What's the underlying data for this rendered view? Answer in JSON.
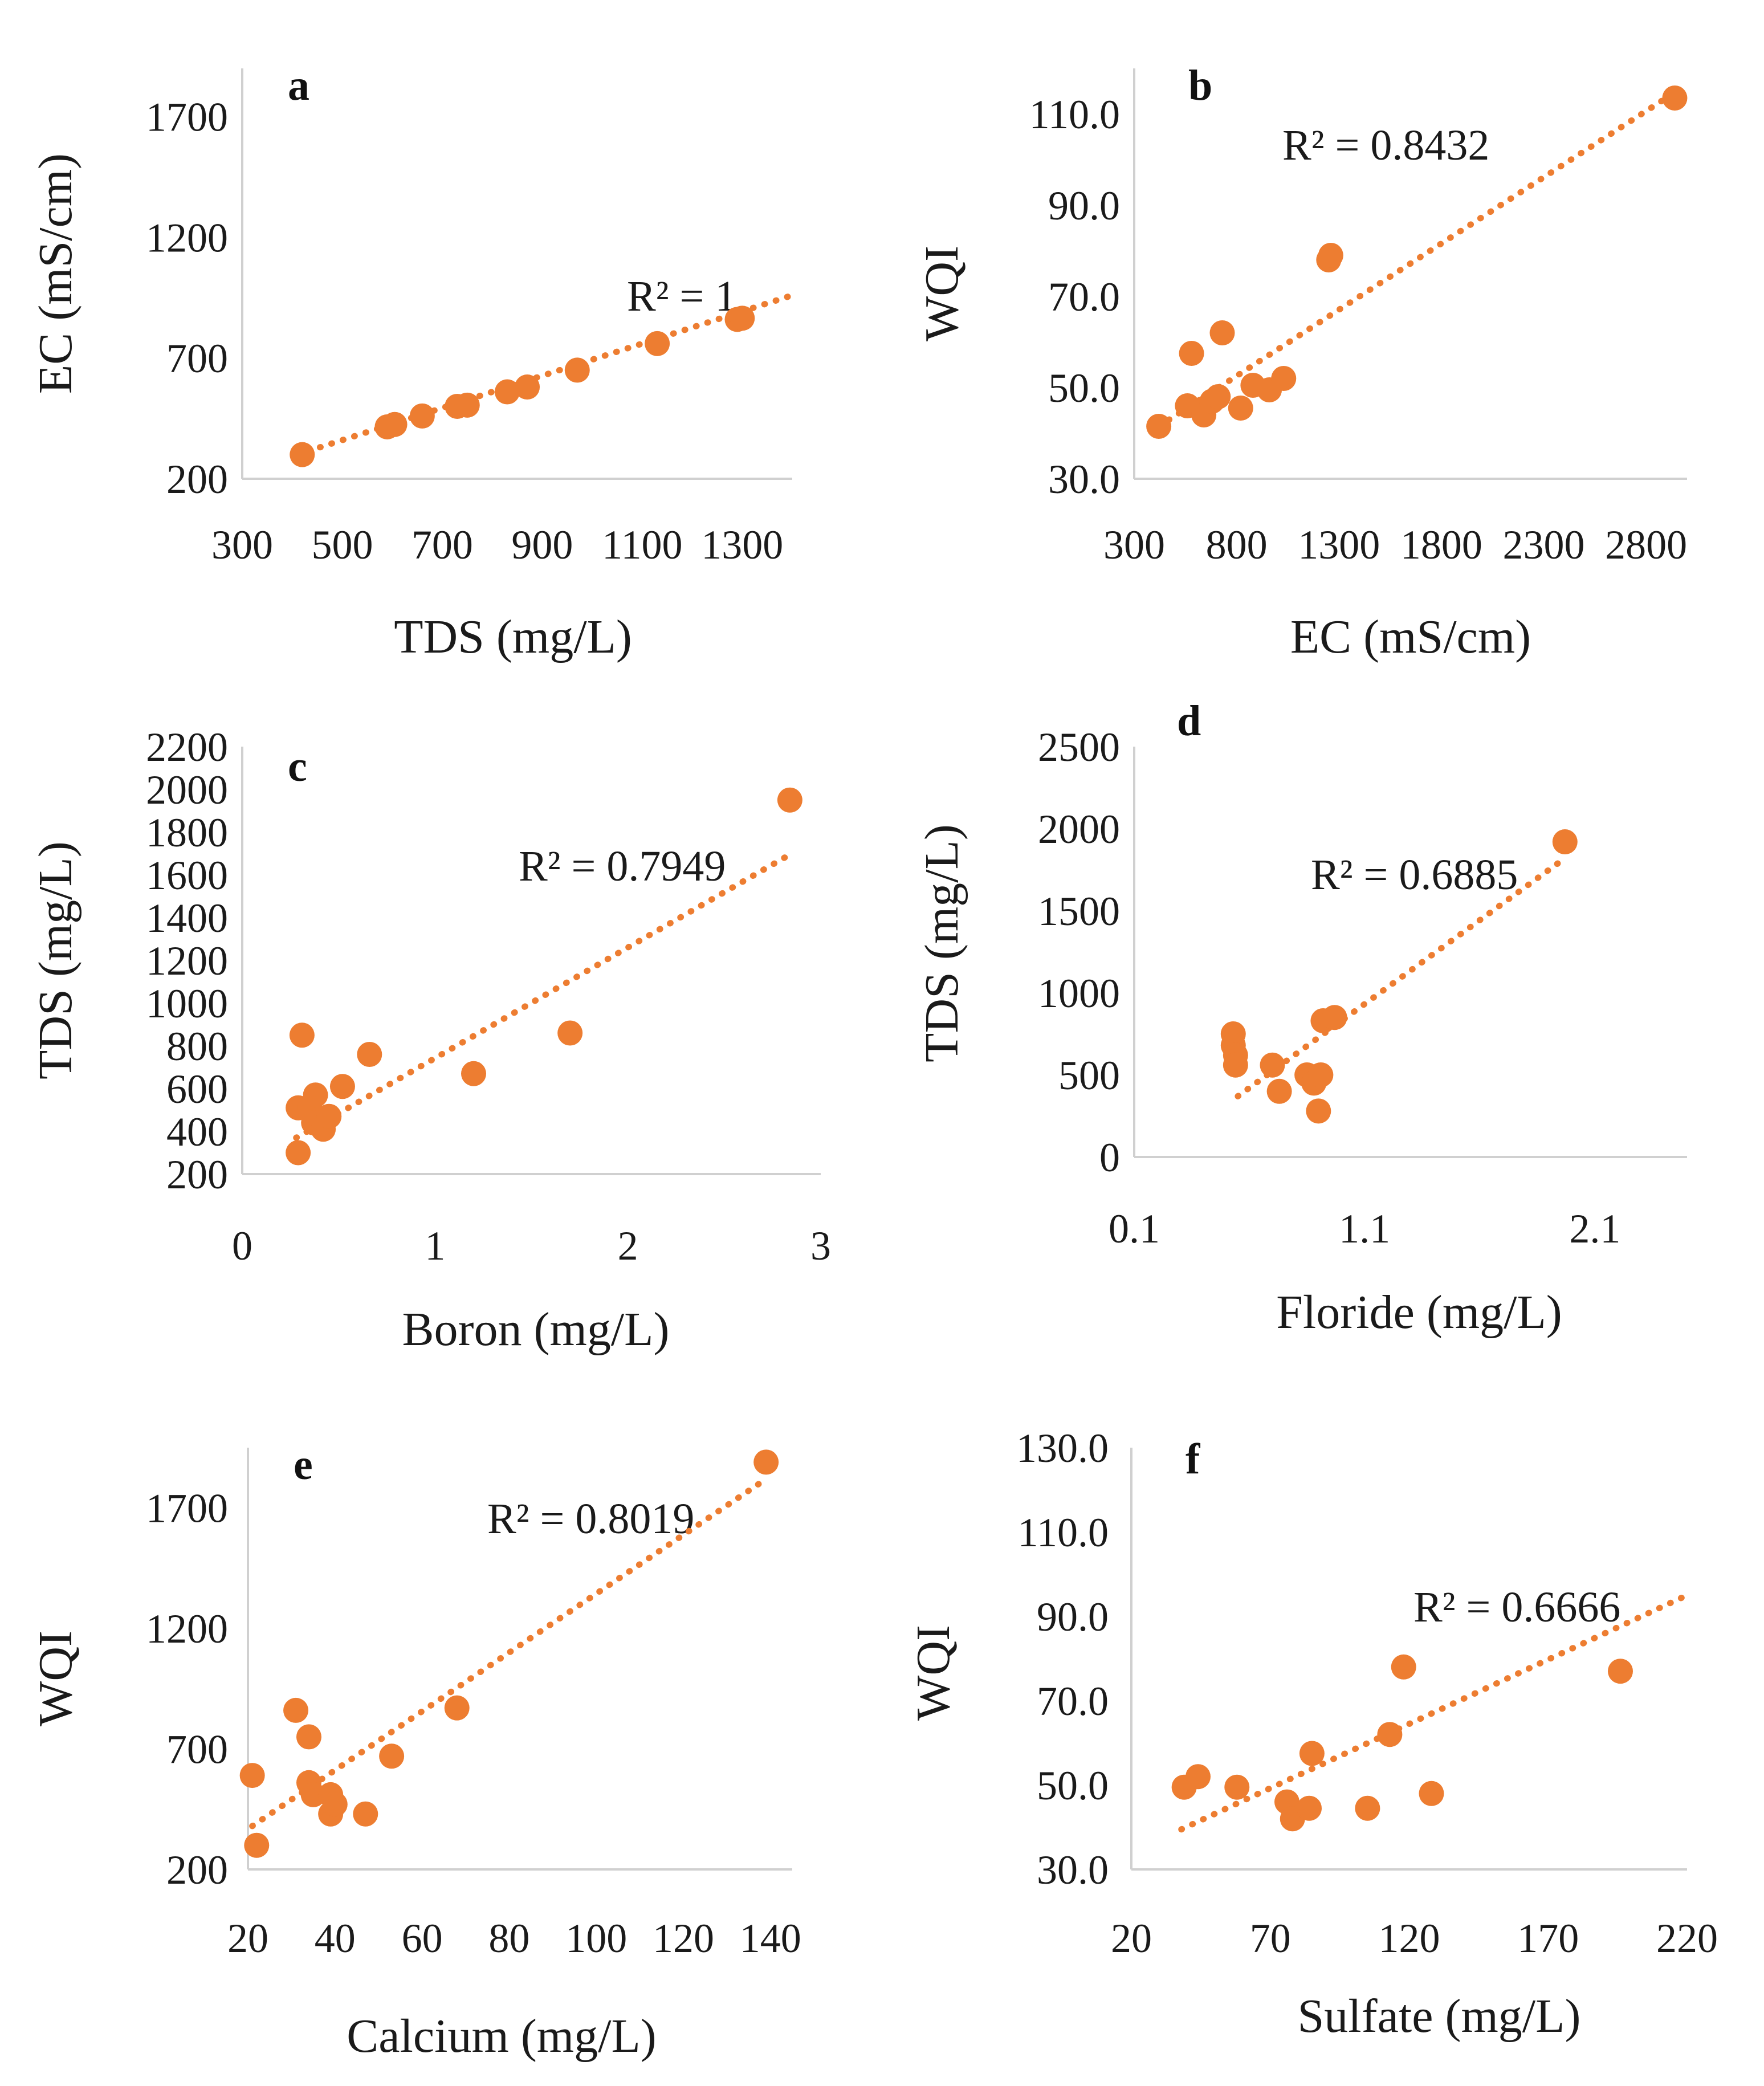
{
  "style": {
    "marker_color": "#ed7d31",
    "axis_color": "#d0d0d0",
    "text_color": "#1a1a1a"
  },
  "chart_data": [
    {
      "type": "scatter",
      "panel": "a",
      "xlabel": "TDS (mg/L)",
      "ylabel": "EC (mS/cm)",
      "xlim": [
        300,
        1400
      ],
      "ylim": [
        200,
        1900
      ],
      "xticks": [
        300,
        500,
        700,
        900,
        1100,
        1300
      ],
      "yticks": [
        200,
        700,
        1200,
        1700
      ],
      "r2_text": "R² = 1",
      "trendline": {
        "x": [
          410,
          1400
        ],
        "y": [
          300,
          960
        ]
      },
      "points": [
        [
          420,
          300
        ],
        [
          590,
          415
        ],
        [
          605,
          425
        ],
        [
          660,
          460
        ],
        [
          730,
          500
        ],
        [
          750,
          505
        ],
        [
          830,
          560
        ],
        [
          870,
          580
        ],
        [
          970,
          650
        ],
        [
          1130,
          760
        ],
        [
          1290,
          860
        ],
        [
          1300,
          865
        ]
      ]
    },
    {
      "type": "scatter",
      "panel": "b",
      "xlabel": "EC (mS/cm)",
      "ylabel": "WQI",
      "xlim": [
        300,
        3000
      ],
      "ylim": [
        30.0,
        120.0
      ],
      "xticks": [
        300,
        800,
        1300,
        1800,
        2300,
        2800
      ],
      "yticks": [
        "30.0",
        "50.0",
        "70.0",
        "90.0",
        "110.0"
      ],
      "r2_text": "R² = 0.8432",
      "trendline": {
        "x": [
          420,
          2950
        ],
        "y": [
          41.5,
          115.0
        ]
      },
      "points": [
        [
          420,
          41.5
        ],
        [
          560,
          46
        ],
        [
          580,
          57.5
        ],
        [
          640,
          44
        ],
        [
          680,
          47
        ],
        [
          710,
          48
        ],
        [
          730,
          62
        ],
        [
          820,
          45.5
        ],
        [
          880,
          50.5
        ],
        [
          960,
          49.5
        ],
        [
          1030,
          52
        ],
        [
          1250,
          78
        ],
        [
          1260,
          79
        ],
        [
          2940,
          113.5
        ]
      ]
    },
    {
      "type": "scatter",
      "panel": "c",
      "xlabel": "Boron (mg/L)",
      "ylabel": "TDS (mg/L)",
      "xlim": [
        0,
        3
      ],
      "ylim": [
        200,
        2200
      ],
      "xticks": [
        0,
        1,
        2,
        3
      ],
      "yticks": [
        200,
        400,
        600,
        800,
        1000,
        1200,
        1400,
        1600,
        1800,
        2000,
        2200
      ],
      "r2_text": "R² = 0.7949",
      "trendline": {
        "x": [
          0.28,
          2.85
        ],
        "y": [
          370,
          1700
        ]
      },
      "points": [
        [
          0.29,
          300
        ],
        [
          0.29,
          510
        ],
        [
          0.31,
          850
        ],
        [
          0.35,
          510
        ],
        [
          0.37,
          440
        ],
        [
          0.38,
          570
        ],
        [
          0.42,
          410
        ],
        [
          0.45,
          470
        ],
        [
          0.52,
          610
        ],
        [
          0.66,
          760
        ],
        [
          1.2,
          670
        ],
        [
          1.7,
          860
        ],
        [
          2.84,
          1950
        ]
      ]
    },
    {
      "type": "scatter",
      "panel": "d",
      "xlabel": "Floride (mg/L)",
      "ylabel": "TDS (mg/L)",
      "xlim": [
        0.1,
        2.5
      ],
      "ylim": [
        0,
        2500
      ],
      "xticks": [
        0.1,
        1.1,
        2.1
      ],
      "yticks": [
        0,
        500,
        1000,
        1500,
        2000,
        2500
      ],
      "r2_text": "R² = 0.6885",
      "trendline": {
        "x": [
          0.55,
          1.95
        ],
        "y": [
          370,
          1800
        ]
      },
      "points": [
        [
          0.53,
          750
        ],
        [
          0.53,
          680
        ],
        [
          0.54,
          620
        ],
        [
          0.54,
          560
        ],
        [
          0.7,
          560
        ],
        [
          0.73,
          400
        ],
        [
          0.85,
          500
        ],
        [
          0.88,
          450
        ],
        [
          0.9,
          280
        ],
        [
          0.91,
          500
        ],
        [
          0.92,
          830
        ],
        [
          0.97,
          850
        ],
        [
          1.97,
          1920
        ]
      ]
    },
    {
      "type": "scatter",
      "panel": "e",
      "xlabel": "Calcium (mg/L)",
      "ylabel": "WQI",
      "xlim": [
        20,
        145
      ],
      "ylim": [
        200,
        1950
      ],
      "xticks": [
        20,
        40,
        60,
        80,
        100,
        120,
        140
      ],
      "yticks": [
        200,
        700,
        1200,
        1700
      ],
      "r2_text": "R² = 0.8019",
      "trendline": {
        "x": [
          21,
          139
        ],
        "y": [
          380,
          1820
        ]
      },
      "points": [
        [
          21,
          590
        ],
        [
          22,
          300
        ],
        [
          31,
          860
        ],
        [
          34,
          750
        ],
        [
          34,
          560
        ],
        [
          35,
          510
        ],
        [
          39,
          430
        ],
        [
          39,
          510
        ],
        [
          40,
          470
        ],
        [
          47,
          430
        ],
        [
          53,
          670
        ],
        [
          68,
          870
        ],
        [
          139,
          1890
        ]
      ]
    },
    {
      "type": "scatter",
      "panel": "f",
      "xlabel": "Sulfate (mg/L)",
      "ylabel": "WQI",
      "xlim": [
        20,
        220
      ],
      "ylim": [
        30.0,
        130.0
      ],
      "xticks": [
        20,
        70,
        120,
        170,
        220
      ],
      "yticks": [
        "30.0",
        "50.0",
        "70.0",
        "90.0",
        "110.0",
        "130.0"
      ],
      "r2_text": "R² = 0.6666",
      "trendline": {
        "x": [
          38,
          220
        ],
        "y": [
          39.5,
          95.0
        ]
      },
      "points": [
        [
          39,
          49.5
        ],
        [
          44,
          52
        ],
        [
          58,
          49.5
        ],
        [
          76,
          46
        ],
        [
          78,
          42
        ],
        [
          84,
          44.5
        ],
        [
          85,
          57.5
        ],
        [
          105,
          44.5
        ],
        [
          113,
          62
        ],
        [
          118,
          78
        ],
        [
          128,
          48
        ],
        [
          196,
          77
        ]
      ]
    }
  ]
}
